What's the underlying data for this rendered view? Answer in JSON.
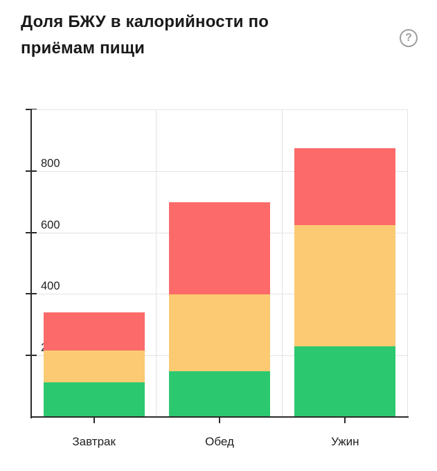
{
  "header": {
    "title": "Доля БЖУ в калорийности по приёмам пищи",
    "help_label": "?"
  },
  "chart_data": {
    "type": "bar",
    "stacked": true,
    "title": "Доля БЖУ в калорийности по приёмам пищи",
    "categories": [
      "Завтрак",
      "Обед",
      "Ужин"
    ],
    "series": [
      {
        "name": "green-bottom-segment",
        "color": "#2CC870",
        "values": [
          110,
          147,
          227
        ]
      },
      {
        "name": "yellow-middle-segment",
        "color": "#FBCA72",
        "values": [
          103,
          249,
          395
        ]
      },
      {
        "name": "red-top-segment",
        "color": "#FC6A6A",
        "values": [
          124,
          301,
          249
        ]
      }
    ],
    "totals": [
      337,
      697,
      871
    ],
    "xlabel": "",
    "ylabel": "",
    "ylim": [
      0,
      1000
    ],
    "ytick_interval": 200,
    "ytick_labels": [
      "200",
      "400",
      "600",
      "800"
    ],
    "grid": true,
    "legend_position": "none"
  },
  "colors": {
    "green": "#2CC870",
    "yellow": "#FBCA72",
    "red": "#FC6A6A",
    "axis": "#2b2b2b",
    "grid": "#e3e3e3",
    "tick_text": "#1f1f1f",
    "title_text": "#1a1a1a",
    "help": "#9e9e9e",
    "background": "#ffffff"
  }
}
